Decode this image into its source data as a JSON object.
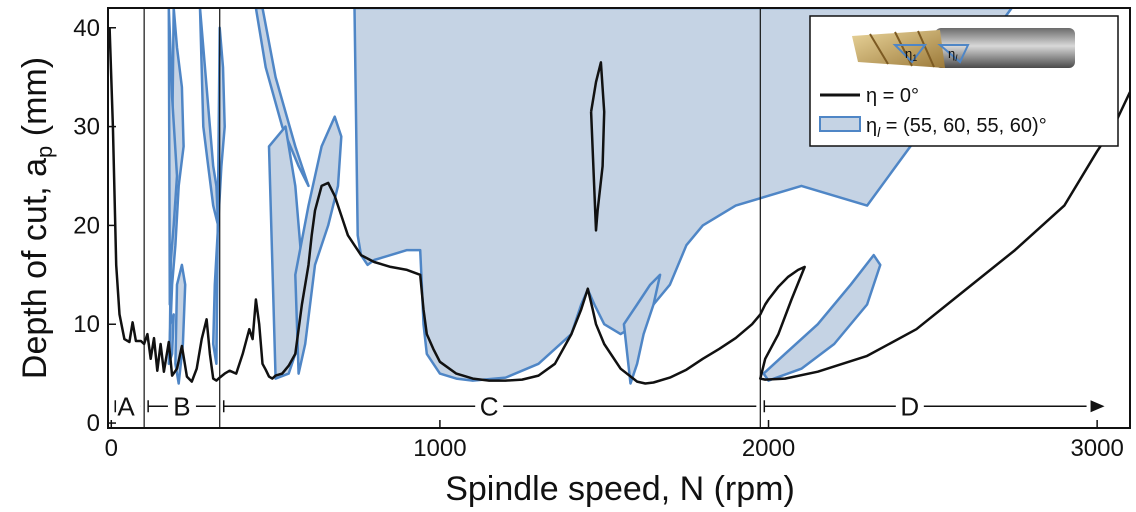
{
  "chart_data": {
    "type": "line",
    "xlabel": "Spindle speed, N (rpm)",
    "ylabel": "Depth of cut, a",
    "ylabel_sub": "p",
    "ylabel_unit": " (mm)",
    "xlim": [
      -10,
      3100
    ],
    "ylim": [
      -0.5,
      42
    ],
    "xticks": [
      0,
      1000,
      2000,
      3000
    ],
    "yticks": [
      0,
      10,
      20,
      30,
      40
    ],
    "grid": false,
    "legend_position": "top-right",
    "colors": {
      "baseline": "#111111",
      "variable_fill": "#c5d3e4",
      "variable_edge": "#4f86c6"
    },
    "legend": {
      "entry1": {
        "prefix": "η = 0°"
      },
      "entry2": {
        "eta": "η",
        "sub": "l",
        "rest": " = (55, 60, 55, 60)°"
      },
      "image_labels": {
        "eta1": "η",
        "eta1_sub": "1",
        "etal": "η",
        "etal_sub": "l"
      }
    },
    "regions": [
      {
        "label": "A",
        "x": 45
      },
      {
        "label": "B",
        "x": 215
      },
      {
        "label": "C",
        "x": 1150
      },
      {
        "label": "D",
        "x": 2430
      }
    ],
    "region_boundaries": [
      100,
      330,
      1975
    ],
    "region_arrow_y": 1.7,
    "series": [
      {
        "key": "baseline",
        "x": [
          -5,
          5,
          15,
          25,
          40,
          55,
          65,
          75,
          90,
          100,
          110,
          120,
          130,
          140,
          150,
          160,
          175,
          185,
          200,
          215,
          230,
          245,
          260,
          275,
          290,
          300,
          310,
          320,
          330,
          345,
          360,
          380,
          400,
          420,
          430,
          440,
          450,
          460,
          470,
          480,
          490,
          500,
          520,
          540,
          560,
          580,
          600,
          610,
          620,
          640,
          660,
          680,
          700,
          720,
          760,
          800,
          850,
          900,
          940,
          950,
          960,
          980,
          1000,
          1050,
          1100,
          1150,
          1200,
          1250,
          1300,
          1350,
          1400,
          1430,
          1450,
          1465,
          1475,
          1500,
          1550,
          1600,
          1625,
          1650,
          1700,
          1750,
          1800,
          1850,
          1900,
          1950,
          1975,
          1990,
          2000,
          2030,
          2060,
          2090,
          2110,
          2070,
          2030,
          1990,
          1975,
          1990,
          2050,
          2150,
          2300,
          2450,
          2600,
          2750,
          2900,
          3000,
          3050,
          3100
        ],
        "y": [
          40,
          30,
          16,
          11,
          8.5,
          8.2,
          10.2,
          8.3,
          8.3,
          8.0,
          9.0,
          6.5,
          8.6,
          5.3,
          8.0,
          5.2,
          8.2,
          4.8,
          5.5,
          7.8,
          4.7,
          4.2,
          5.5,
          8.5,
          10.5,
          7.0,
          4.5,
          4.3,
          4.6,
          5.0,
          5.3,
          5.0,
          7.0,
          9.5,
          8.5,
          12.5,
          10.0,
          6.0,
          5.4,
          4.7,
          4.5,
          4.8,
          5.0,
          5.8,
          7.0,
          12.0,
          16.0,
          19.0,
          21.5,
          24.0,
          24.3,
          23.0,
          21.0,
          19.0,
          17.0,
          16.3,
          15.8,
          15.5,
          15.0,
          11.5,
          9.0,
          7.5,
          6.2,
          5.0,
          4.5,
          4.3,
          4.3,
          4.4,
          4.8,
          6.0,
          9.0,
          11.5,
          13.6,
          11.5,
          10.0,
          8.0,
          5.5,
          4.2,
          4.0,
          4.1,
          4.6,
          5.4,
          6.5,
          7.5,
          8.6,
          10.0,
          11.0,
          12.0,
          12.5,
          13.8,
          14.8,
          15.5,
          15.8,
          12.5,
          9.0,
          6.5,
          4.5,
          4.4,
          4.5,
          5.2,
          6.8,
          9.5,
          13.5,
          17.5,
          22.0,
          27.5,
          30.0,
          33.5
        ]
      },
      {
        "key": "baseline_island",
        "x": [
          1460,
          1475,
          1490,
          1500,
          1495,
          1480,
          1475,
          1460
        ],
        "y": [
          31.5,
          34.5,
          36.5,
          31.5,
          26.0,
          21.5,
          19.5,
          31.5
        ]
      }
    ],
    "variable_regions": [
      {
        "x": [
          190,
          200,
          215,
          220,
          205,
          195,
          185,
          178,
          190
        ],
        "y": [
          42,
          38,
          34,
          28,
          24,
          18,
          14,
          8,
          42
        ]
      },
      {
        "x": [
          175,
          180,
          185,
          200,
          190,
          180,
          178,
          175
        ],
        "y": [
          42,
          38,
          33,
          25,
          20,
          16,
          12,
          42
        ]
      },
      {
        "x": [
          270,
          280,
          290,
          300,
          310,
          320,
          325,
          310,
          295,
          280,
          270
        ],
        "y": [
          42,
          38,
          34,
          30,
          26,
          24,
          20,
          22,
          26,
          30,
          42
        ]
      },
      {
        "x": [
          330,
          340,
          345,
          335,
          325,
          315,
          310,
          320,
          330
        ],
        "y": [
          40,
          36,
          30,
          26,
          20,
          14,
          8,
          6,
          40
        ]
      },
      {
        "x": [
          200,
          215,
          225,
          218,
          205,
          195,
          200
        ],
        "y": [
          14,
          16,
          14,
          8,
          4,
          6,
          14
        ]
      },
      {
        "x": [
          180,
          190,
          185,
          175,
          180
        ],
        "y": [
          10,
          11,
          7,
          6,
          10
        ]
      },
      {
        "x": [
          460,
          500,
          560,
          600,
          570,
          520,
          470,
          440,
          460
        ],
        "y": [
          42,
          35,
          28,
          24,
          26,
          30,
          36,
          42,
          42
        ]
      },
      {
        "x": [
          480,
          530,
          560,
          580,
          570,
          540,
          500,
          480
        ],
        "y": [
          28,
          30,
          24,
          16,
          8,
          5,
          4.5,
          28
        ]
      },
      {
        "x": [
          560,
          600,
          640,
          680,
          700,
          690,
          660,
          620,
          590,
          570,
          560
        ],
        "y": [
          15,
          22,
          28,
          31,
          29,
          24,
          20,
          16,
          8,
          5,
          15
        ]
      },
      {
        "x": [
          740,
          760,
          780,
          800,
          850,
          900,
          950,
          1000,
          1100,
          1200,
          1300,
          1400,
          1500,
          1600,
          1700,
          1800,
          1900,
          2000,
          2050,
          2100,
          2200,
          2300,
          2400,
          2500,
          2550,
          2580,
          2600,
          2620,
          2650,
          2700,
          2740,
          2300,
          2100,
          1900,
          1800,
          1750,
          1700,
          1650,
          1600,
          1550,
          1500,
          1470,
          1450,
          1430,
          1400,
          1300,
          1200,
          1100,
          1050,
          1000,
          960,
          950,
          945,
          940,
          900,
          850,
          800,
          780,
          760,
          750,
          740
        ],
        "y": [
          42,
          42,
          42,
          42,
          42,
          42,
          42,
          42,
          42,
          42,
          42,
          42,
          42,
          42,
          42,
          42,
          42,
          42,
          42,
          42,
          42,
          42,
          42,
          42,
          42,
          42,
          42,
          42,
          42,
          42,
          42,
          22,
          24,
          22,
          20,
          18,
          14,
          12,
          10,
          9,
          10,
          12,
          13.5,
          12,
          9,
          6,
          4.6,
          4.3,
          4.5,
          5,
          7,
          10,
          14,
          17.5,
          17.5,
          17,
          16.5,
          16,
          17,
          19,
          42
        ]
      },
      {
        "x": [
          1560,
          1600,
          1640,
          1670,
          1650,
          1620,
          1600,
          1580,
          1560
        ],
        "y": [
          10,
          12,
          14,
          15,
          12,
          9,
          6,
          4,
          10
        ]
      },
      {
        "x": [
          1985,
          2050,
          2150,
          2250,
          2320,
          2340,
          2300,
          2200,
          2100,
          2000,
          1985
        ],
        "y": [
          5,
          7,
          10,
          14,
          17,
          16,
          12,
          8,
          5.5,
          4.3,
          5
        ]
      }
    ]
  }
}
